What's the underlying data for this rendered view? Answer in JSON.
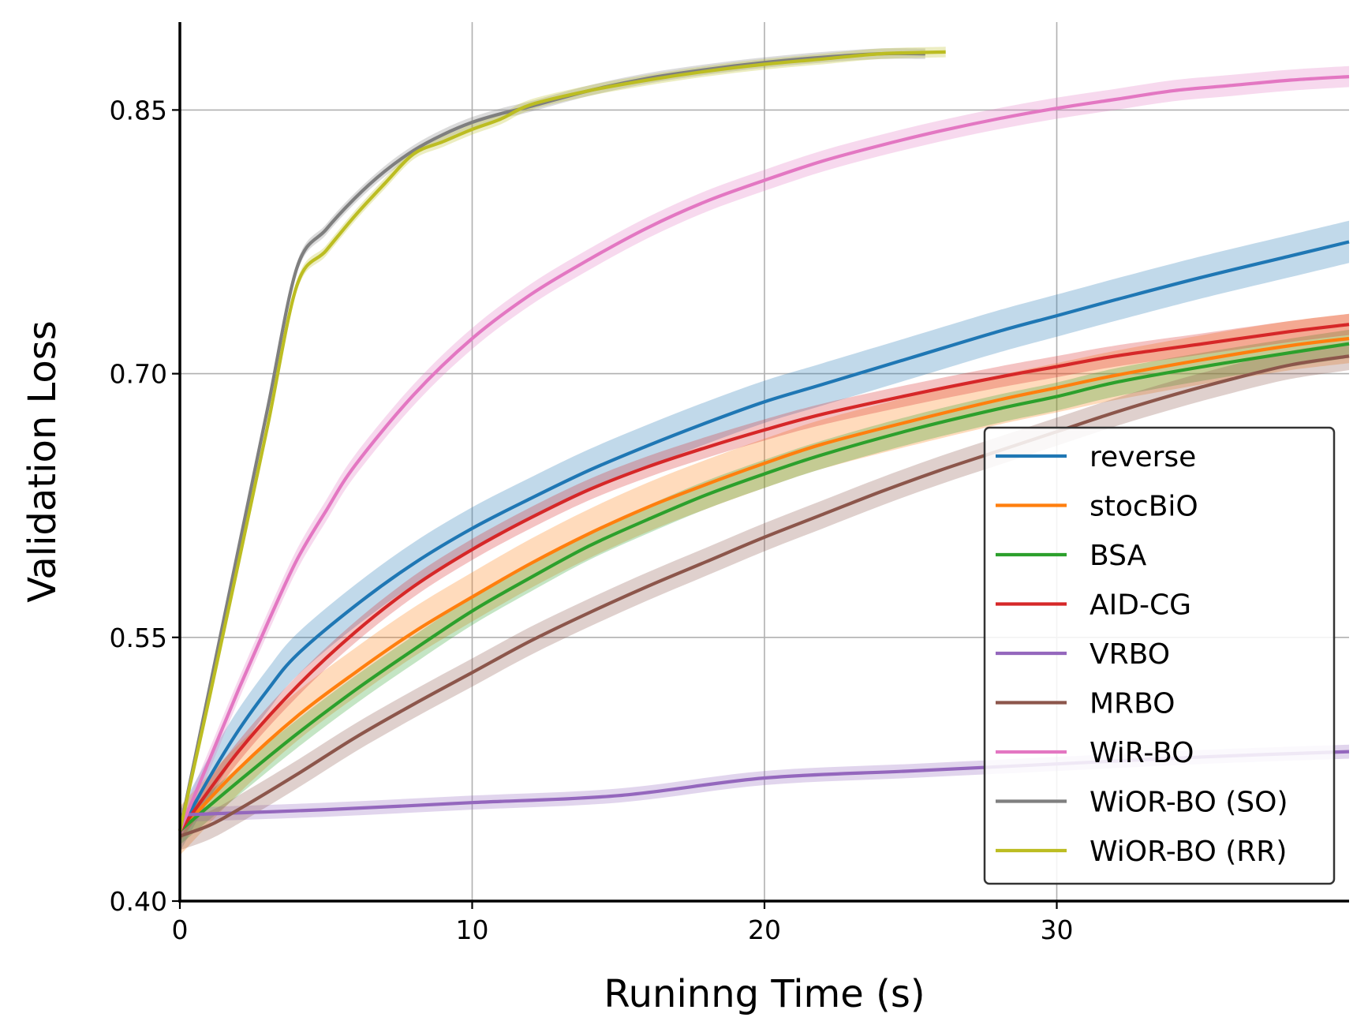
{
  "chart_data": {
    "type": "line",
    "title": "",
    "xlabel": "Runinng Time (s)",
    "ylabel": "Validation Loss",
    "xlim": [
      0,
      40
    ],
    "ylim": [
      0.4,
      0.9
    ],
    "xticks": [
      0,
      10,
      20,
      30
    ],
    "xtick_labels": [
      "0",
      "10",
      "20",
      "30"
    ],
    "yticks": [
      0.4,
      0.55,
      0.7,
      0.85
    ],
    "ytick_labels": [
      "0.40",
      "0.55",
      "0.70",
      "0.85"
    ],
    "grid": true,
    "legend_position": "lower-right",
    "series": [
      {
        "name": "reverse",
        "color": "#1f77b4",
        "band": 0.012,
        "x": [
          0,
          1,
          2,
          3,
          4,
          6,
          8,
          10,
          12,
          14,
          16,
          18,
          20,
          22,
          25,
          28,
          30,
          32,
          35,
          38,
          40
        ],
        "y": [
          0.44,
          0.47,
          0.497,
          0.52,
          0.54,
          0.568,
          0.592,
          0.612,
          0.629,
          0.645,
          0.659,
          0.672,
          0.684,
          0.694,
          0.709,
          0.724,
          0.733,
          0.742,
          0.755,
          0.767,
          0.775
        ]
      },
      {
        "name": "stocBiO",
        "color": "#ff7f0e",
        "band": 0.014,
        "x": [
          0,
          2,
          4,
          6,
          8,
          10,
          12,
          14,
          16,
          18,
          20,
          22,
          25,
          28,
          30,
          32,
          35,
          38,
          40
        ],
        "y": [
          0.44,
          0.475,
          0.505,
          0.53,
          0.553,
          0.573,
          0.592,
          0.609,
          0.624,
          0.637,
          0.649,
          0.66,
          0.673,
          0.685,
          0.692,
          0.699,
          0.708,
          0.716,
          0.72
        ]
      },
      {
        "name": "BSA",
        "color": "#2ca02c",
        "band": 0.008,
        "x": [
          0,
          2,
          4,
          6,
          8,
          10,
          12,
          14,
          16,
          18,
          20,
          22,
          25,
          28,
          30,
          32,
          35,
          38,
          40
        ],
        "y": [
          0.44,
          0.468,
          0.495,
          0.52,
          0.543,
          0.565,
          0.584,
          0.602,
          0.617,
          0.631,
          0.643,
          0.654,
          0.668,
          0.68,
          0.687,
          0.695,
          0.704,
          0.712,
          0.717
        ]
      },
      {
        "name": "AID-CG",
        "color": "#d62728",
        "band": 0.006,
        "x": [
          0,
          2,
          4,
          6,
          8,
          10,
          12,
          14,
          16,
          18,
          20,
          22,
          25,
          28,
          30,
          32,
          35,
          38,
          40
        ],
        "y": [
          0.44,
          0.485,
          0.522,
          0.553,
          0.579,
          0.6,
          0.618,
          0.634,
          0.647,
          0.658,
          0.668,
          0.677,
          0.688,
          0.698,
          0.704,
          0.71,
          0.717,
          0.724,
          0.728
        ]
      },
      {
        "name": "VRBO",
        "color": "#9467bd",
        "band": 0.004,
        "x": [
          0,
          5,
          10,
          15,
          20,
          25,
          30,
          35,
          40
        ],
        "y": [
          0.449,
          0.452,
          0.456,
          0.46,
          0.47,
          0.474,
          0.478,
          0.482,
          0.485
        ]
      },
      {
        "name": "MRBO",
        "color": "#8c564b",
        "band": 0.008,
        "x": [
          0,
          1,
          2,
          4,
          6,
          8,
          10,
          12,
          14,
          16,
          18,
          20,
          22,
          24,
          26,
          28,
          30,
          32,
          34,
          36,
          38,
          40
        ],
        "y": [
          0.437,
          0.443,
          0.452,
          0.472,
          0.493,
          0.512,
          0.53,
          0.548,
          0.564,
          0.579,
          0.593,
          0.607,
          0.62,
          0.633,
          0.645,
          0.656,
          0.667,
          0.678,
          0.688,
          0.697,
          0.705,
          0.71
        ]
      },
      {
        "name": "WiR-BO",
        "color": "#e377c2",
        "band": 0.006,
        "x": [
          0,
          1,
          2,
          3,
          4,
          5,
          6,
          8,
          10,
          12,
          14,
          16,
          18,
          20,
          22,
          24,
          26,
          28,
          30,
          32,
          34,
          36,
          38,
          40
        ],
        "y": [
          0.44,
          0.48,
          0.52,
          0.558,
          0.594,
          0.622,
          0.648,
          0.688,
          0.72,
          0.745,
          0.765,
          0.783,
          0.798,
          0.81,
          0.821,
          0.83,
          0.838,
          0.845,
          0.851,
          0.856,
          0.861,
          0.864,
          0.867,
          0.869
        ]
      },
      {
        "name": "WiOR-BO (SO)",
        "color": "#7f7f7f",
        "band": 0.003,
        "x": [
          0,
          1,
          2,
          3,
          4,
          5,
          6,
          7,
          8,
          9,
          10,
          11,
          12,
          14,
          16,
          18,
          20,
          22,
          24,
          25.5
        ],
        "y": [
          0.44,
          0.52,
          0.6,
          0.68,
          0.76,
          0.782,
          0.8,
          0.815,
          0.827,
          0.836,
          0.843,
          0.848,
          0.852,
          0.861,
          0.868,
          0.873,
          0.877,
          0.88,
          0.882,
          0.882
        ]
      },
      {
        "name": "WiOR-BO (RR)",
        "color": "#bcbd22",
        "band": 0.003,
        "x": [
          0,
          1,
          2,
          3,
          4,
          5,
          6,
          7,
          8,
          9,
          10,
          11,
          12,
          14,
          16,
          18,
          20,
          22,
          24,
          26.2
        ],
        "y": [
          0.44,
          0.515,
          0.592,
          0.67,
          0.75,
          0.77,
          0.79,
          0.808,
          0.825,
          0.832,
          0.839,
          0.845,
          0.853,
          0.861,
          0.867,
          0.872,
          0.876,
          0.879,
          0.882,
          0.883
        ]
      }
    ]
  }
}
